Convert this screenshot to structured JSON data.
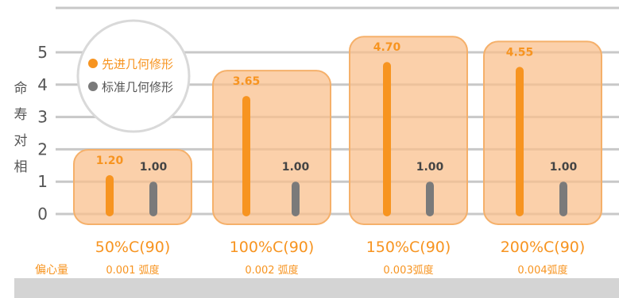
{
  "colors": {
    "advanced": "#f79420",
    "standard": "#7a7a7a",
    "grid": "#c8c8c8",
    "group_fill": "#f9c08d",
    "group_stroke": "#f5b06a",
    "label_orange": "#f79420",
    "axis_text": "#555555",
    "footer": "#d4d4d4"
  },
  "chart_data": {
    "type": "bar",
    "ylabel": "相对寿命",
    "ylim": [
      0,
      5.5
    ],
    "yticks": [
      "0",
      "1",
      "2",
      "3",
      "4",
      "5"
    ],
    "grid": true,
    "legend_position": "top-left",
    "categories": [
      "50%C(90)",
      "100%C(90)",
      "150%C(90)",
      "200%C(90)"
    ],
    "series": [
      {
        "name": "先进几何修形",
        "values": [
          1.2,
          3.65,
          4.7,
          4.55
        ],
        "labels": [
          "1.20",
          "3.65",
          "4.70",
          "4.55"
        ]
      },
      {
        "name": "标准几何修形",
        "values": [
          1.0,
          1.0,
          1.0,
          1.0
        ],
        "labels": [
          "1.00",
          "1.00",
          "1.00",
          "1.00"
        ]
      }
    ],
    "eccentricity_label": "偏心量",
    "eccentricity_values": [
      "0.001 弧度",
      "0.002 弧度",
      "0.003弧度",
      "0.004弧度"
    ]
  }
}
